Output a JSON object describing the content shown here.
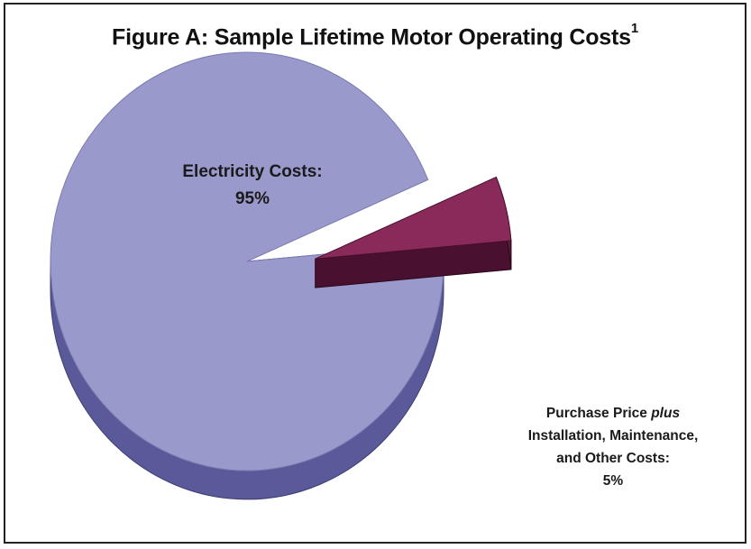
{
  "chart_data": {
    "type": "pie",
    "title": "Figure A: Sample Lifetime Motor Operating Costs",
    "title_superscript": "1",
    "slices": [
      {
        "label_lines": [
          "Electricity Costs:"
        ],
        "value": 95,
        "value_label": "95%",
        "color": "#9999cc",
        "side_color": "#5a5a9a"
      },
      {
        "label_pre": "Purchase Price ",
        "label_emphasis": "plus",
        "label_lines": [
          "Installation, Maintenance,",
          "and Other Costs:"
        ],
        "value": 5,
        "value_label": "5%",
        "color": "#8a2a5a",
        "side_color": "#4a1030",
        "exploded": true
      }
    ],
    "legend": "none"
  }
}
